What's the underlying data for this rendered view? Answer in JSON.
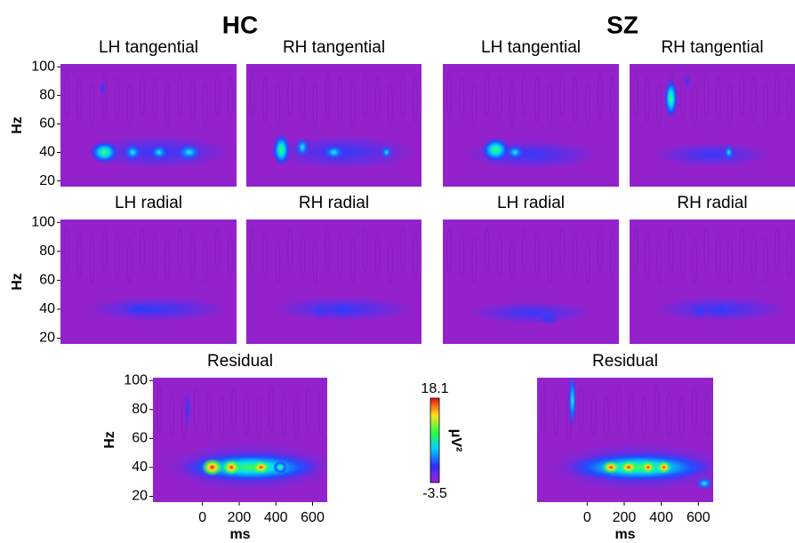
{
  "chart_data": {
    "type": "heatmap",
    "groups": [
      "HC",
      "SZ"
    ],
    "panels": [
      {
        "group": "HC",
        "title": "LH tangential"
      },
      {
        "group": "HC",
        "title": "RH tangential"
      },
      {
        "group": "SZ",
        "title": "LH tangential"
      },
      {
        "group": "SZ",
        "title": "RH tangential"
      },
      {
        "group": "HC",
        "title": "LH radial"
      },
      {
        "group": "HC",
        "title": "RH radial"
      },
      {
        "group": "SZ",
        "title": "LH radial"
      },
      {
        "group": "SZ",
        "title": "RH radial"
      },
      {
        "group": "HC",
        "title": "Residual"
      },
      {
        "group": "SZ",
        "title": "Residual"
      }
    ],
    "y_label": "Hz",
    "x_label": "ms",
    "ylim": [
      16,
      102
    ],
    "yticks": [
      20,
      40,
      60,
      80,
      100
    ],
    "xlim": [
      -270,
      680
    ],
    "xticks": [
      0,
      200,
      400,
      600
    ],
    "colorbar": {
      "min": -3.5,
      "max": 18.1,
      "label": "μV²"
    }
  }
}
